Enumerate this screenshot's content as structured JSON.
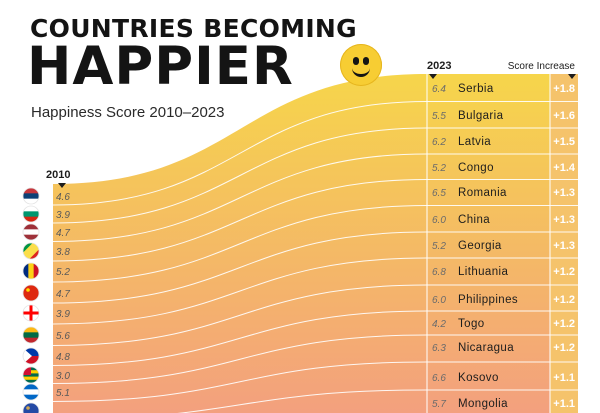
{
  "title_line1": "COUNTRIES BECOMING",
  "title_line2": "HAPPIER",
  "subtitle": "Happiness Score 2010–2023",
  "smiley_icon": "smiling-face-icon",
  "colors": {
    "top_band": "#f6d64a",
    "bottom_band": "#f3a07e",
    "increase_column": "#f5c36b",
    "text_dark": "#1d1d1d",
    "text_light": "#ffffff"
  },
  "chart_data": {
    "type": "table",
    "title": "COUNTRIES BECOMING HAPPIER",
    "subtitle": "Happiness Score 2010–2023",
    "start_year_label": "2010",
    "end_year_label": "2023",
    "increase_header": "Score Increase",
    "rows": [
      {
        "country": "Serbia",
        "score_2010": "4.6",
        "score_2023": "6.4",
        "increase": "+1.8",
        "flag": "serbia-flag"
      },
      {
        "country": "Bulgaria",
        "score_2010": "3.9",
        "score_2023": "5.5",
        "increase": "+1.6",
        "flag": "bulgaria-flag"
      },
      {
        "country": "Latvia",
        "score_2010": "4.7",
        "score_2023": "6.2",
        "increase": "+1.5",
        "flag": "latvia-flag"
      },
      {
        "country": "Congo",
        "score_2010": "3.8",
        "score_2023": "5.2",
        "increase": "+1.4",
        "flag": "congo-flag"
      },
      {
        "country": "Romania",
        "score_2010": "5.2",
        "score_2023": "6.5",
        "increase": "+1.3",
        "flag": "romania-flag"
      },
      {
        "country": "China",
        "score_2010": "4.7",
        "score_2023": "6.0",
        "increase": "+1.3",
        "flag": "china-flag"
      },
      {
        "country": "Georgia",
        "score_2010": "3.9",
        "score_2023": "5.2",
        "increase": "+1.3",
        "flag": "georgia-flag"
      },
      {
        "country": "Lithuania",
        "score_2010": "5.6",
        "score_2023": "6.8",
        "increase": "+1.2",
        "flag": "lithuania-flag"
      },
      {
        "country": "Philippines",
        "score_2010": "4.8",
        "score_2023": "6.0",
        "increase": "+1.2",
        "flag": "philippines-flag"
      },
      {
        "country": "Togo",
        "score_2010": "3.0",
        "score_2023": "4.2",
        "increase": "+1.2",
        "flag": "togo-flag"
      },
      {
        "country": "Nicaragua",
        "score_2010": "5.1",
        "score_2023": "6.3",
        "increase": "+1.2",
        "flag": "nicaragua-flag"
      },
      {
        "country": "Kosovo",
        "score_2010": "",
        "score_2023": "6.6",
        "increase": "+1.1",
        "flag": "kosovo-flag"
      },
      {
        "country": "Mongolia",
        "score_2010": "",
        "score_2023": "5.7",
        "increase": "+1.1",
        "flag": "mongolia-flag"
      }
    ]
  }
}
